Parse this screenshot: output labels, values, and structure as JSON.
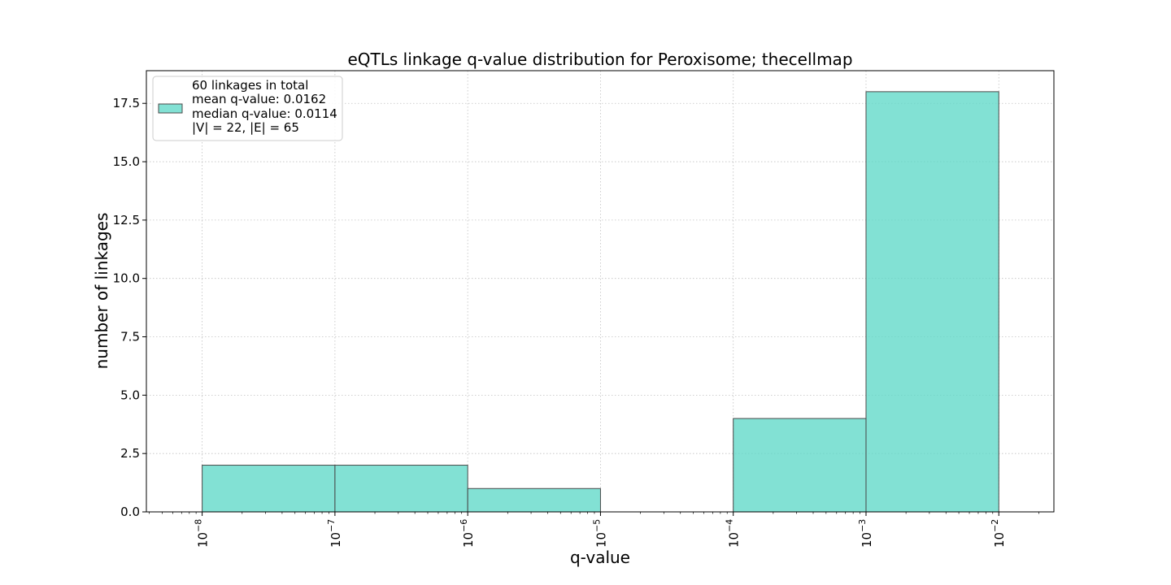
{
  "chart_data": {
    "type": "bar",
    "title": "eQTLs linkage q-value distribution for Peroxisome; thecellmap",
    "xlabel": "q-value",
    "ylabel": "number of linkages",
    "xscale": "log",
    "xlim": [
      3.8e-09,
      0.026
    ],
    "ylim": [
      0,
      18.9
    ],
    "grid": true,
    "legend_placement": "top-left",
    "bar_color": "#5fd8c8",
    "edge_color": "#4a4a4a",
    "bins": [
      {
        "x0": 1e-08,
        "x1": 1e-07,
        "value": 2
      },
      {
        "x0": 1e-07,
        "x1": 1e-06,
        "value": 2
      },
      {
        "x0": 1e-06,
        "x1": 1e-05,
        "value": 1
      },
      {
        "x0": 1e-05,
        "x1": 0.0001,
        "value": 0
      },
      {
        "x0": 0.0001,
        "x1": 0.001,
        "value": 4
      },
      {
        "x0": 0.001,
        "x1": 0.01,
        "value": 18
      }
    ],
    "x_ticks": [
      {
        "value": 1e-08,
        "base": "10",
        "exp": "−8"
      },
      {
        "value": 1e-07,
        "base": "10",
        "exp": "−7"
      },
      {
        "value": 1e-06,
        "base": "10",
        "exp": "−6"
      },
      {
        "value": 1e-05,
        "base": "10",
        "exp": "−5"
      },
      {
        "value": 0.0001,
        "base": "10",
        "exp": "−4"
      },
      {
        "value": 0.001,
        "base": "10",
        "exp": "−3"
      },
      {
        "value": 0.01,
        "base": "10",
        "exp": "−2"
      }
    ],
    "y_ticks": [
      {
        "value": 0,
        "label": "0.0"
      },
      {
        "value": 2.5,
        "label": "2.5"
      },
      {
        "value": 5,
        "label": "5.0"
      },
      {
        "value": 7.5,
        "label": "7.5"
      },
      {
        "value": 10,
        "label": "10.0"
      },
      {
        "value": 12.5,
        "label": "12.5"
      },
      {
        "value": 15,
        "label": "15.0"
      },
      {
        "value": 17.5,
        "label": "17.5"
      }
    ],
    "legend": {
      "lines": [
        "60 linkages in total",
        "mean q-value: 0.0162",
        "median q-value: 0.0114",
        "|V| = 22, |E| = 65"
      ]
    }
  }
}
